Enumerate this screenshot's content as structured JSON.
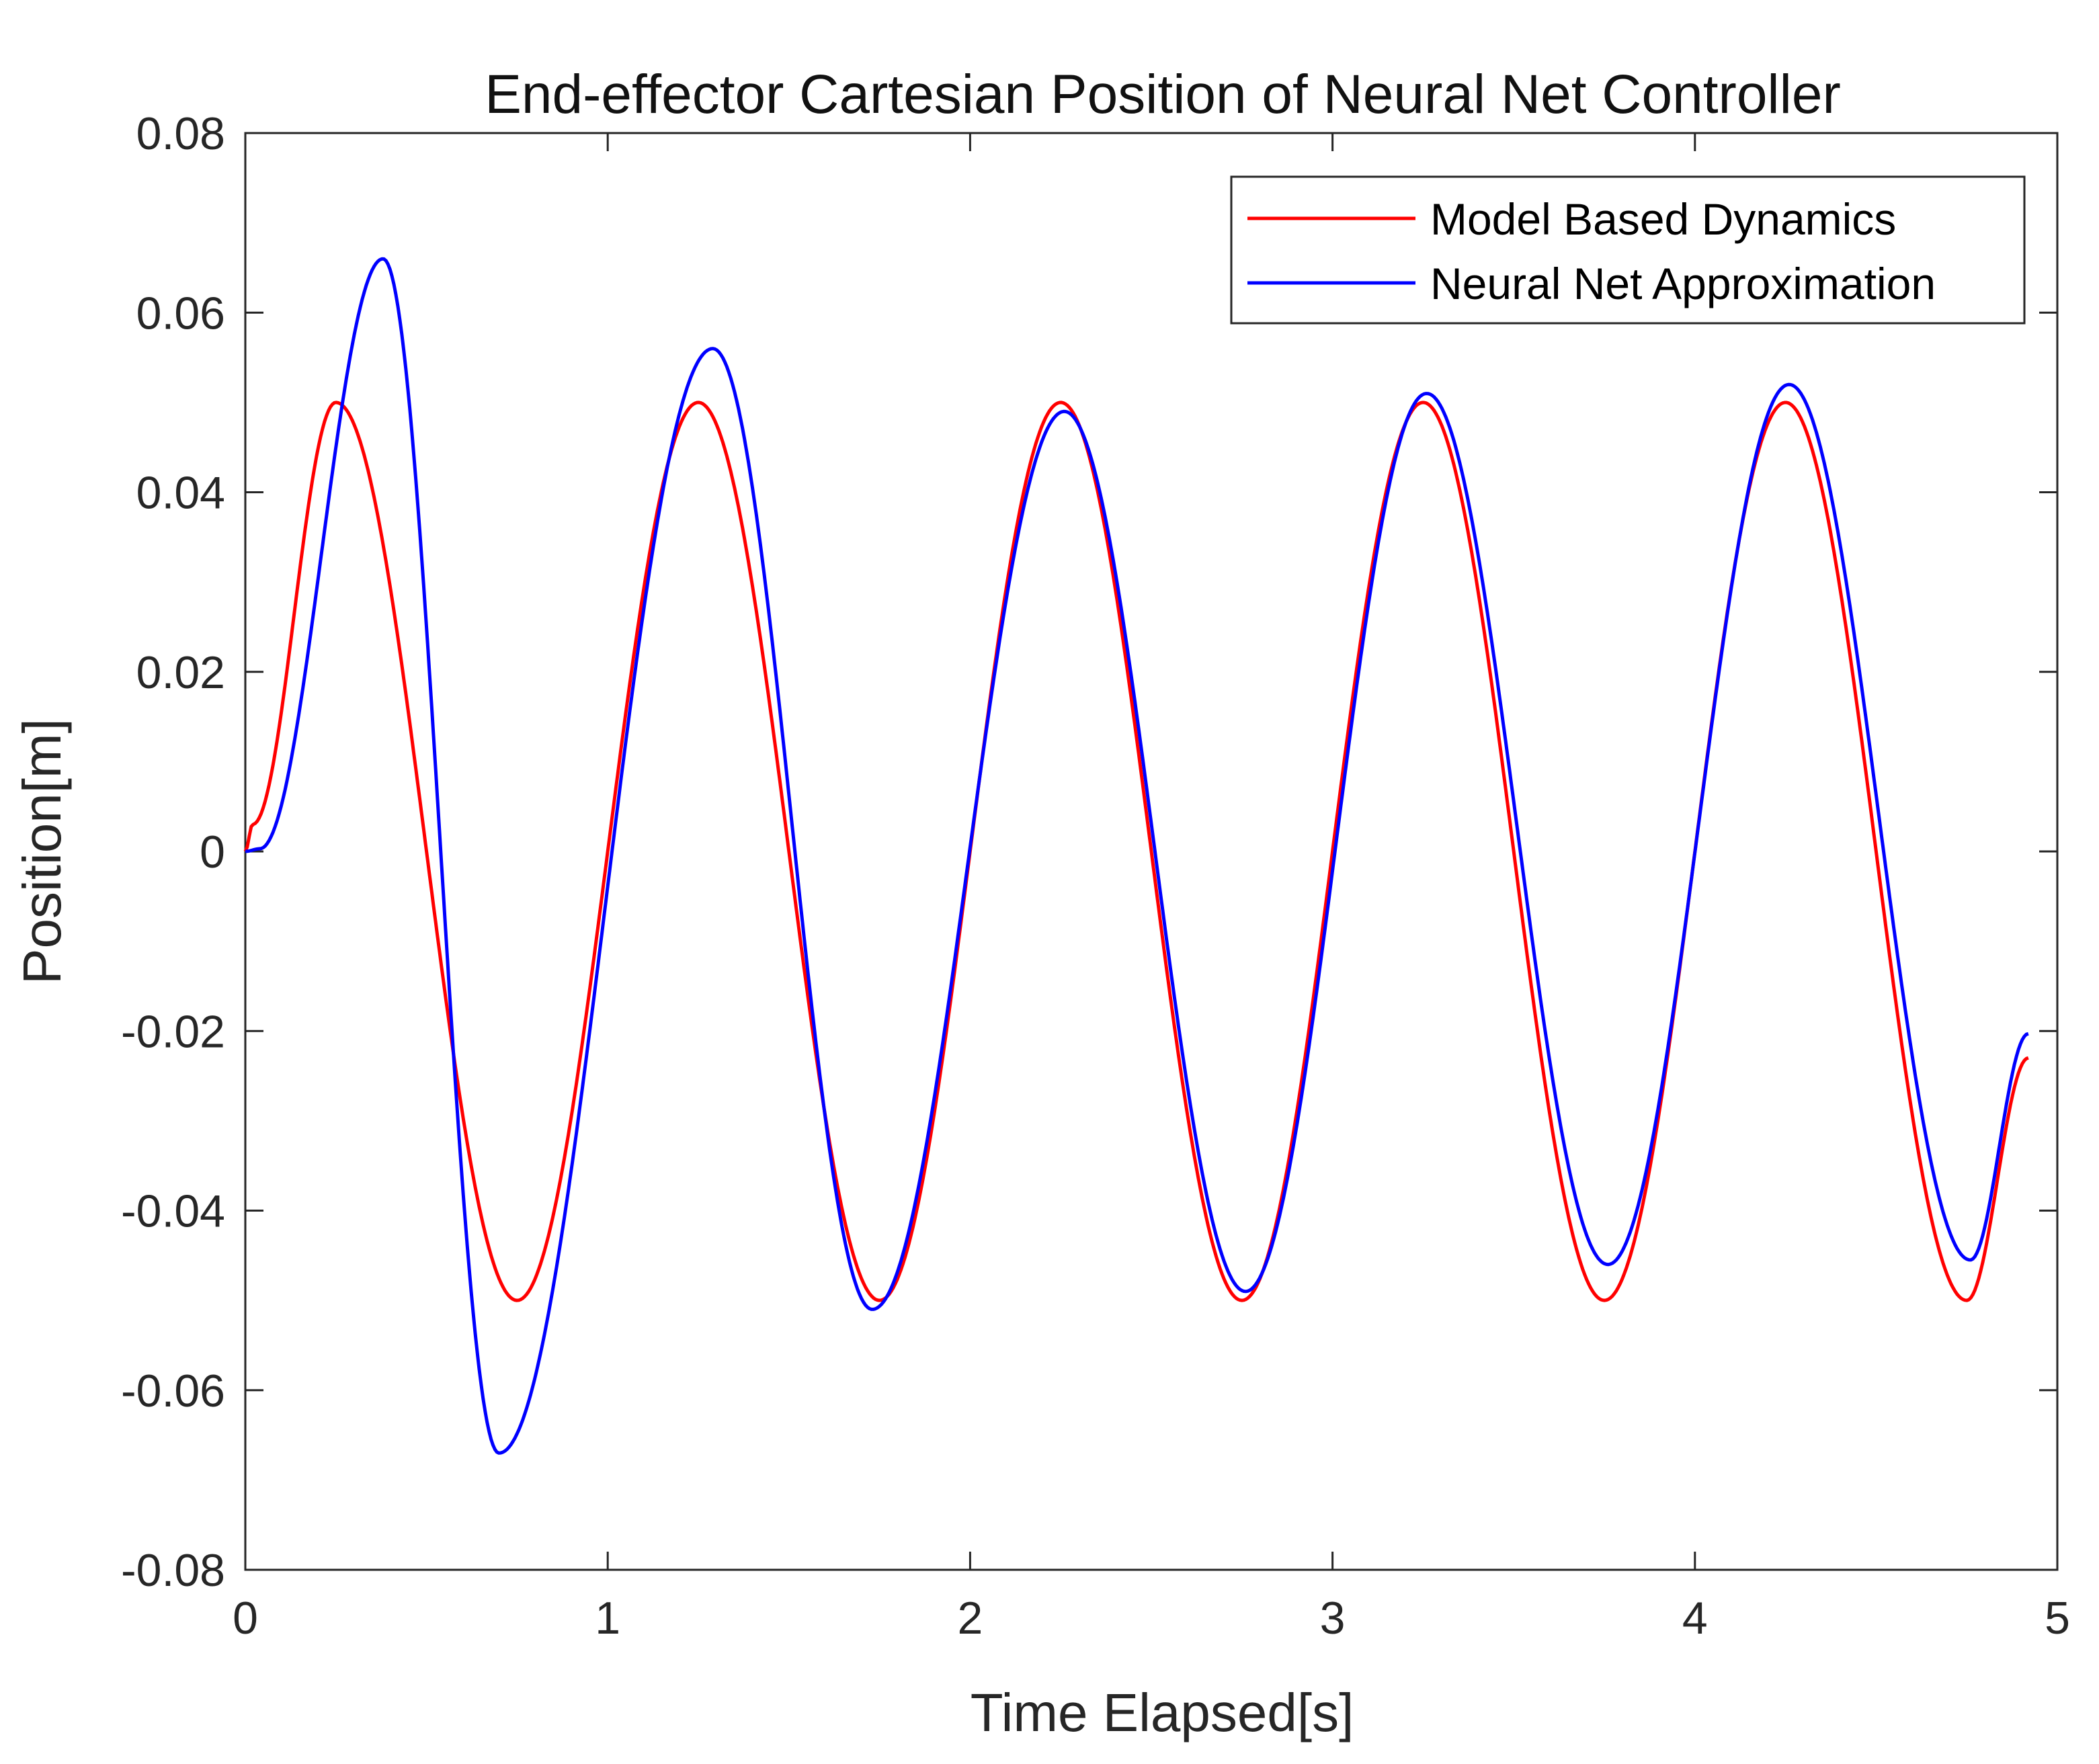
{
  "chart_data": {
    "type": "line",
    "title": "End-effector Cartesian Position of Neural Net Controller",
    "xlabel": "Time Elapsed[s]",
    "ylabel": "Position[m]",
    "xlim": [
      0,
      5
    ],
    "ylim": [
      -0.08,
      0.08
    ],
    "xticks": [
      "0",
      "1",
      "2",
      "3",
      "4",
      "5"
    ],
    "yticks": [
      "0.08",
      "0.06",
      "0.04",
      "0.02",
      "0",
      "-0.02",
      "-0.04",
      "-0.06",
      "-0.08"
    ],
    "grid": false,
    "legend_position": "top-right",
    "series": [
      {
        "name": "Model Based Dynamics",
        "color": "#ff0000",
        "x": [
          0,
          0.02,
          0.25,
          0.75,
          1.25,
          1.75,
          2.25,
          2.75,
          3.25,
          3.75,
          4.25,
          4.75,
          4.92
        ],
        "y": [
          0,
          0.003,
          0.05,
          -0.05,
          0.05,
          -0.05,
          0.05,
          -0.05,
          0.05,
          -0.05,
          0.05,
          -0.05,
          -0.023
        ]
      },
      {
        "name": "Neural Net Approximation",
        "color": "#0000ff",
        "x": [
          0,
          0.04,
          0.38,
          0.7,
          1.29,
          1.73,
          2.26,
          2.76,
          3.26,
          3.76,
          4.26,
          4.76,
          4.92
        ],
        "y": [
          0,
          0.0003,
          0.066,
          -0.067,
          0.056,
          -0.051,
          0.049,
          -0.049,
          0.051,
          -0.046,
          0.052,
          -0.0455,
          -0.0203
        ]
      }
    ]
  }
}
